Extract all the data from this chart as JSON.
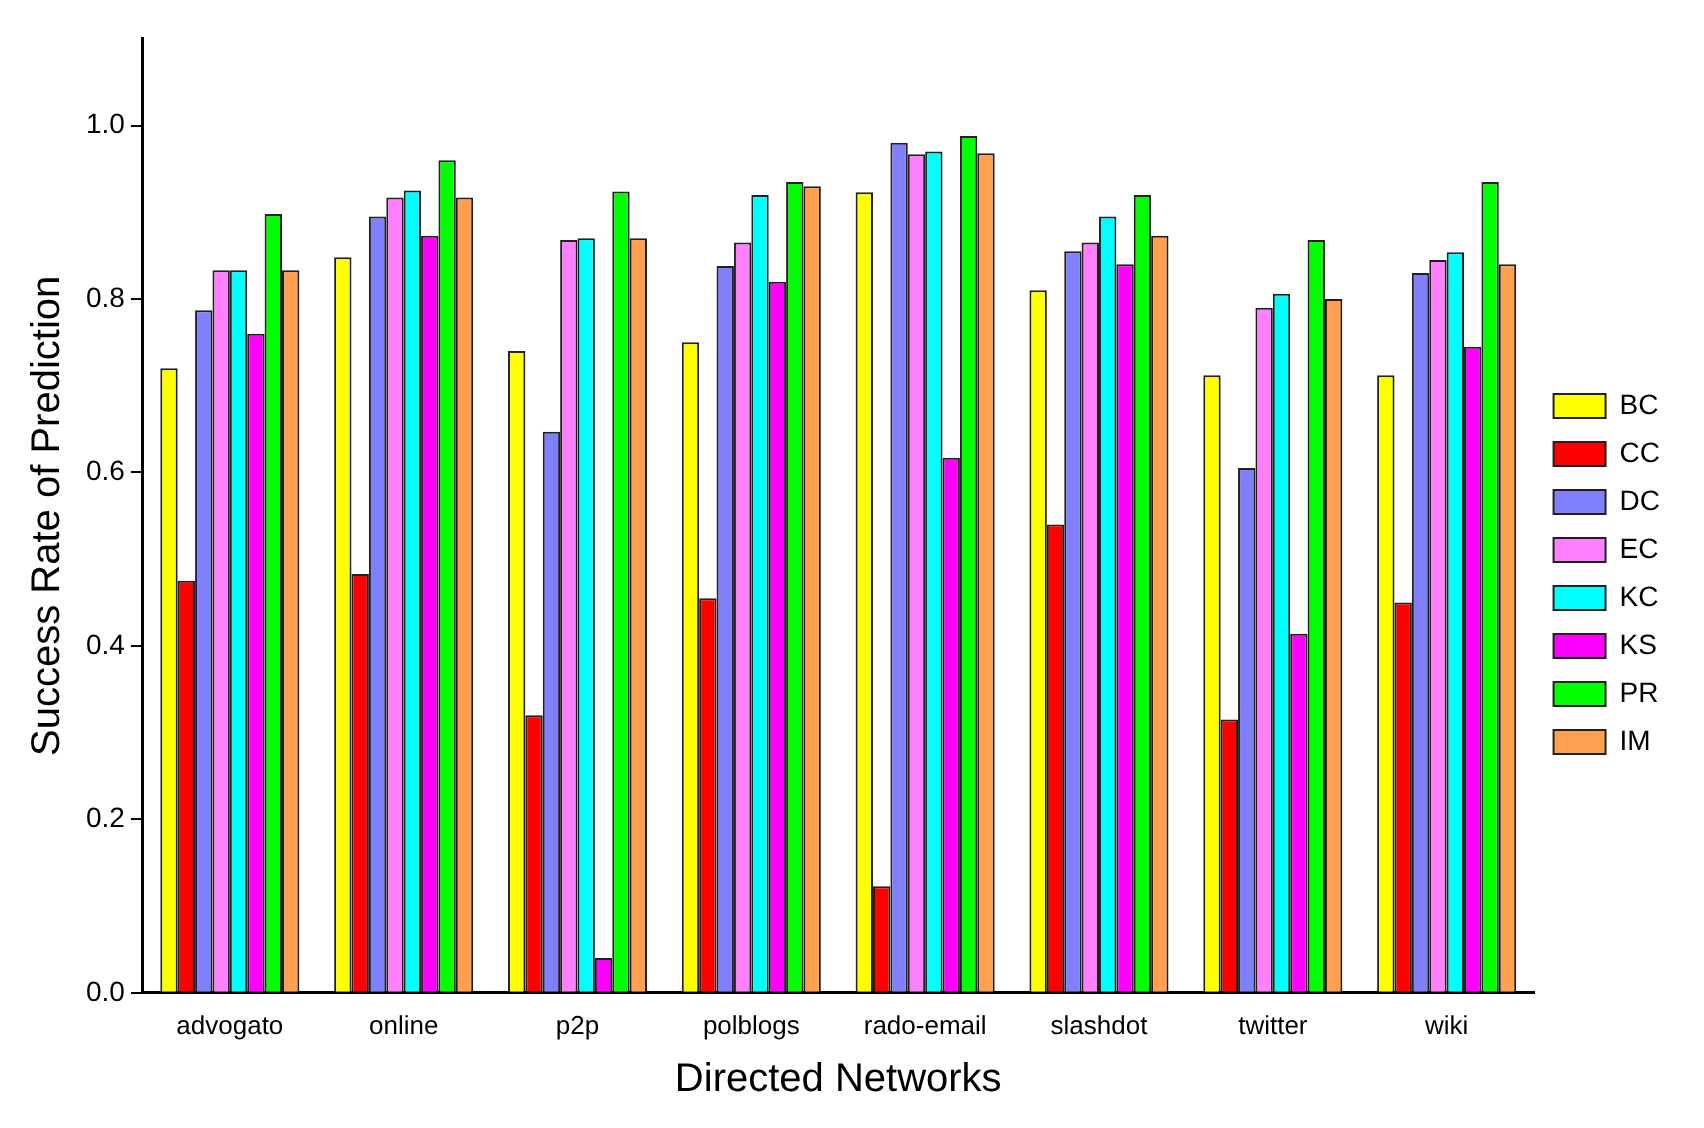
{
  "chart_data": {
    "type": "bar",
    "xlabel": "Directed Networks",
    "ylabel": "Success Rate of Prediction",
    "categories": [
      "advogato",
      "online",
      "p2p",
      "polblogs",
      "rado-email",
      "slashdot",
      "twitter",
      "wiki"
    ],
    "series": [
      {
        "name": "BC",
        "color": "#ffff00",
        "values": [
          0.72,
          0.848,
          0.74,
          0.75,
          0.923,
          0.81,
          0.712,
          0.712
        ]
      },
      {
        "name": "CC",
        "color": "#ff0000",
        "values": [
          0.475,
          0.483,
          0.32,
          0.455,
          0.123,
          0.54,
          0.315,
          0.45
        ]
      },
      {
        "name": "DC",
        "color": "#8080ff",
        "values": [
          0.787,
          0.895,
          0.647,
          0.838,
          0.98,
          0.855,
          0.605,
          0.83
        ]
      },
      {
        "name": "EC",
        "color": "#ff80ff",
        "values": [
          0.833,
          0.917,
          0.868,
          0.865,
          0.967,
          0.865,
          0.79,
          0.845
        ]
      },
      {
        "name": "KC",
        "color": "#00ffff",
        "values": [
          0.833,
          0.925,
          0.87,
          0.92,
          0.97,
          0.895,
          0.806,
          0.854
        ]
      },
      {
        "name": "KS",
        "color": "#ff00ff",
        "values": [
          0.76,
          0.873,
          0.04,
          0.82,
          0.617,
          0.84,
          0.414,
          0.745
        ]
      },
      {
        "name": "PR",
        "color": "#00ff00",
        "values": [
          0.898,
          0.96,
          0.924,
          0.935,
          0.988,
          0.92,
          0.868,
          0.935
        ]
      },
      {
        "name": "IM",
        "color": "#ffa050",
        "values": [
          0.833,
          0.917,
          0.87,
          0.93,
          0.968,
          0.873,
          0.8,
          0.84
        ]
      }
    ],
    "ylim": [
      0,
      1.1
    ],
    "yticks": [
      {
        "value": 0,
        "label": "0.0"
      },
      {
        "value": 0.2,
        "label": "0.2"
      },
      {
        "value": 0.4,
        "label": "0.4"
      },
      {
        "value": 0.6,
        "label": "0.6"
      },
      {
        "value": 0.8,
        "label": "0.8"
      },
      {
        "value": 1,
        "label": "1.0"
      }
    ],
    "grid": false,
    "legend": "right"
  }
}
